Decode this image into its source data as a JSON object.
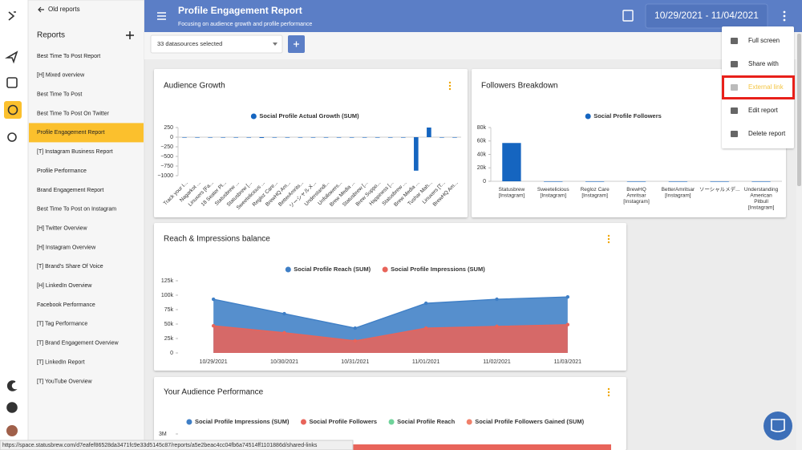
{
  "sidebar": {
    "back": "Old reports",
    "heading": "Reports",
    "active": 4,
    "items": [
      "Best Time To Post Report",
      "[H] Mixed overview",
      "Best Time To Post",
      "Best Time To Post On Twitter",
      "Profile Engagement Report",
      "[T] Instagram Business Report",
      "Profile Performance",
      "Brand Engagement Report",
      "Best Time To Post on Instagram",
      "[H] Twitter Overview",
      "[H] Instagram Overview",
      "[T] Brand's Share Of Voice",
      "[H] LinkedIn Overview",
      "Facebook Performance",
      "[T] Tag Performance",
      "[T] Brand Engagement Overview",
      "[T] LinkedIn Report",
      "[T] YouTube Overview"
    ]
  },
  "header": {
    "title": "Profile Engagement Report",
    "subtitle": "Focusing on audience growth and profile performance",
    "date_range": "10/29/2021 - 11/04/2021"
  },
  "toolbar": {
    "datasources": "33 datasources selected"
  },
  "menu": {
    "highlighted": 2,
    "items": [
      "Full screen",
      "Share with",
      "External link",
      "Edit report",
      "Delete report"
    ]
  },
  "cards": [
    {
      "title": "Audience Growth",
      "chart": {
        "type": "bar",
        "series": [
          {
            "name": "Social Profile Actual Growth (SUM)",
            "color": "#1565c0",
            "values": [
              0,
              0,
              0,
              0,
              0,
              -10,
              -20,
              0,
              0,
              0,
              0,
              0,
              0,
              0,
              0,
              0,
              0,
              -10,
              -870,
              250,
              -10,
              0
            ]
          }
        ],
        "categories": [
          "Track your I...",
          "Nagarkot ...",
          "Linuxers [Fa...",
          "18 Seater Pl...",
          "Statusbrew ...",
          "Statusbrew [...",
          "Sweetelicious ...",
          "Regloz Care...",
          "BrewHQ Am...",
          "BetterAmrits...",
          "ソーシャルメ...",
          "Understandi...",
          "Unfollowers...",
          "Brew Media ...",
          "Statusbrew [...",
          "Brew Suppo...",
          "Happiness [...",
          "Statusbrew ...",
          "Brew Media ...",
          "Tushar Mah...",
          "Linuxers [T...",
          "BrewHQ Am..."
        ],
        "ylim": [
          -1000,
          250
        ],
        "yticks": [
          250,
          0,
          {
            "value": -250,
            "label": "−250"
          },
          {
            "value": -500,
            "label": "−500"
          },
          {
            "value": -750,
            "label": "−750"
          },
          {
            "value": -1000,
            "label": "−1000"
          }
        ],
        "grid": false
      }
    },
    {
      "title": "Followers Breakdown",
      "chart": {
        "type": "bar",
        "series": [
          {
            "name": "Social Profile Followers",
            "color": "#1565c0",
            "values": [
              57000,
              0,
              0,
              0,
              0,
              0,
              0
            ]
          }
        ],
        "categories": [
          "Statusbrew [Instagram]",
          "Sweetelicious [Instagram]",
          "Regloz Care [Instagram]",
          "BrewHQ Amritsar [Instagram]",
          "BetterAmritsar [Instagram]",
          "ソーシャルメデ...",
          "Understanding American Pitbull [Instagram]"
        ],
        "ylim": [
          0,
          80000
        ],
        "yticks": [
          {
            "value": 0,
            "label": "0"
          },
          {
            "value": 20000,
            "label": "20k"
          },
          {
            "value": 40000,
            "label": "40k"
          },
          {
            "value": 60000,
            "label": "60k"
          },
          {
            "value": 80000,
            "label": "80k"
          }
        ],
        "grid": false
      }
    },
    {
      "title": "Reach & Impressions balance",
      "chart": {
        "type": "area",
        "categories": [
          "10/29/2021",
          "10/30/2021",
          "10/31/2021",
          "11/01/2021",
          "11/02/2021",
          "11/03/2021"
        ],
        "series": [
          {
            "name": "Social Profile Reach (SUM)",
            "color": "#3f7fc6",
            "values": [
              93000,
              68000,
              43000,
              86000,
              93000,
              97000
            ]
          },
          {
            "name": "Social Profile Impressions (SUM)",
            "color": "#e8645a",
            "values": [
              47000,
              35000,
              21000,
              43000,
              46000,
              49000
            ]
          }
        ],
        "ylim": [
          0,
          125000
        ],
        "yticks": [
          {
            "value": 0,
            "label": "0"
          },
          {
            "value": 25000,
            "label": "25k"
          },
          {
            "value": 50000,
            "label": "50k"
          },
          {
            "value": 75000,
            "label": "75k"
          },
          {
            "value": 100000,
            "label": "100k"
          },
          {
            "value": 125000,
            "label": "125k"
          }
        ],
        "grid": false
      }
    },
    {
      "title": "Your Audience Performance",
      "chart": {
        "type": "line",
        "series": [
          {
            "name": "Social Profile Impressions (SUM)",
            "color": "#3f7fc6"
          },
          {
            "name": "Social Profile Followers",
            "color": "#e8645a"
          },
          {
            "name": "Social Profile Reach",
            "color": "#6fd39a"
          },
          {
            "name": "Social Profile Followers Gained (SUM)",
            "color": "#f0806a"
          }
        ],
        "yticks": [
          {
            "value": 3000000,
            "label": "3M"
          }
        ]
      }
    }
  ],
  "status_url": "https://space.statusbrew.com/d7eafef86528da3471fc9e33d5145c87/reports/a5e2beac4cc04fb6a74514ff1101886d/shared-links"
}
